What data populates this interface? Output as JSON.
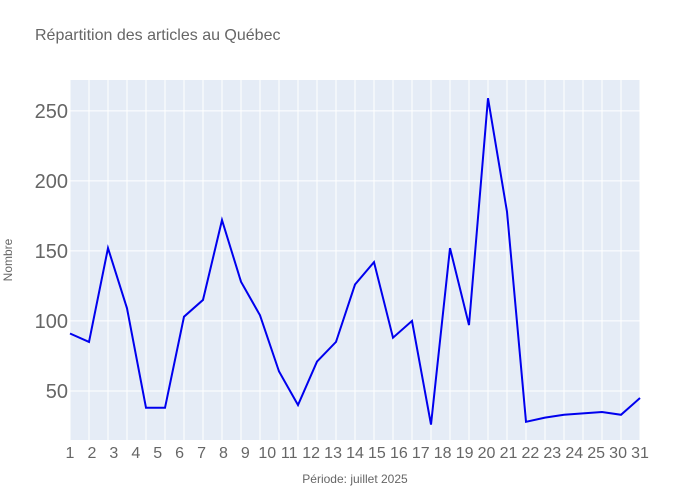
{
  "chart_data": {
    "type": "line",
    "title": "Répartition des articles au Québec",
    "xlabel": "Période: juillet 2025",
    "ylabel": "Nombre",
    "x": [
      1,
      2,
      3,
      4,
      5,
      6,
      7,
      8,
      9,
      10,
      11,
      12,
      13,
      14,
      15,
      16,
      17,
      18,
      19,
      20,
      21,
      22,
      23,
      24,
      25,
      26,
      27,
      28,
      29,
      30,
      31
    ],
    "x_tick_labels": [
      "1",
      "2",
      "3",
      "4",
      "5",
      "6",
      "7",
      "8",
      "9",
      "10",
      "11",
      "12",
      "13",
      "14",
      "15",
      "16",
      "17",
      "18",
      "19",
      "20",
      "21",
      "22",
      "23",
      "24",
      "25",
      "30",
      "31"
    ],
    "series": [
      {
        "values": [
          91,
          85,
          152,
          109,
          38,
          38,
          103,
          115,
          172,
          128,
          104,
          64,
          40,
          71,
          85,
          126,
          142,
          88,
          100,
          26,
          152,
          97,
          259,
          178,
          28,
          31,
          33,
          34,
          35,
          33,
          45
        ],
        "color": "#0000ee"
      }
    ],
    "y_ticks": [
      50,
      100,
      150,
      200,
      250
    ],
    "xlim": [
      1,
      31
    ],
    "ylim": [
      15,
      272
    ],
    "grid": true,
    "colors": {
      "plot_bg": "#e5ecf6",
      "grid": "#ffffff",
      "line": "#0000ee",
      "text": "#666666"
    }
  }
}
